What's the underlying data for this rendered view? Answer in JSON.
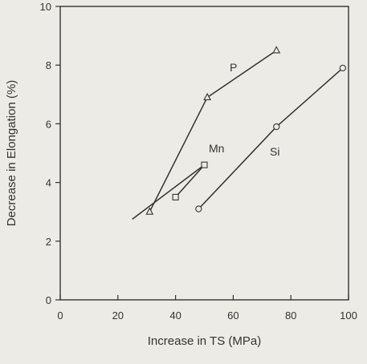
{
  "chart_data": {
    "type": "line",
    "xlabel": "Increase in TS (MPa)",
    "ylabel": "Decrease in Elongation (%)",
    "xlim": [
      0,
      100
    ],
    "ylim": [
      0,
      10
    ],
    "xticks": [
      0,
      20,
      40,
      60,
      80,
      100
    ],
    "yticks": [
      0,
      2,
      4,
      6,
      8,
      10
    ],
    "grid": false,
    "legend": "none",
    "series": [
      {
        "name": "P",
        "marker": "triangle",
        "x": [
          31,
          51,
          75
        ],
        "y": [
          3.0,
          6.9,
          8.5
        ]
      },
      {
        "name": "Mn",
        "marker": "square",
        "x": [
          40,
          50
        ],
        "y": [
          3.5,
          4.6
        ]
      },
      {
        "name": "Si",
        "marker": "circle",
        "x": [
          48,
          75,
          98
        ],
        "y": [
          3.1,
          5.9,
          7.9
        ]
      }
    ],
    "extra_lines": [
      {
        "note": "fitted line through P and Mn low-end points",
        "x": [
          25,
          50
        ],
        "y": [
          2.75,
          4.6
        ]
      }
    ],
    "colors": {
      "ink": "#333333",
      "background": "#ecebe6"
    }
  }
}
